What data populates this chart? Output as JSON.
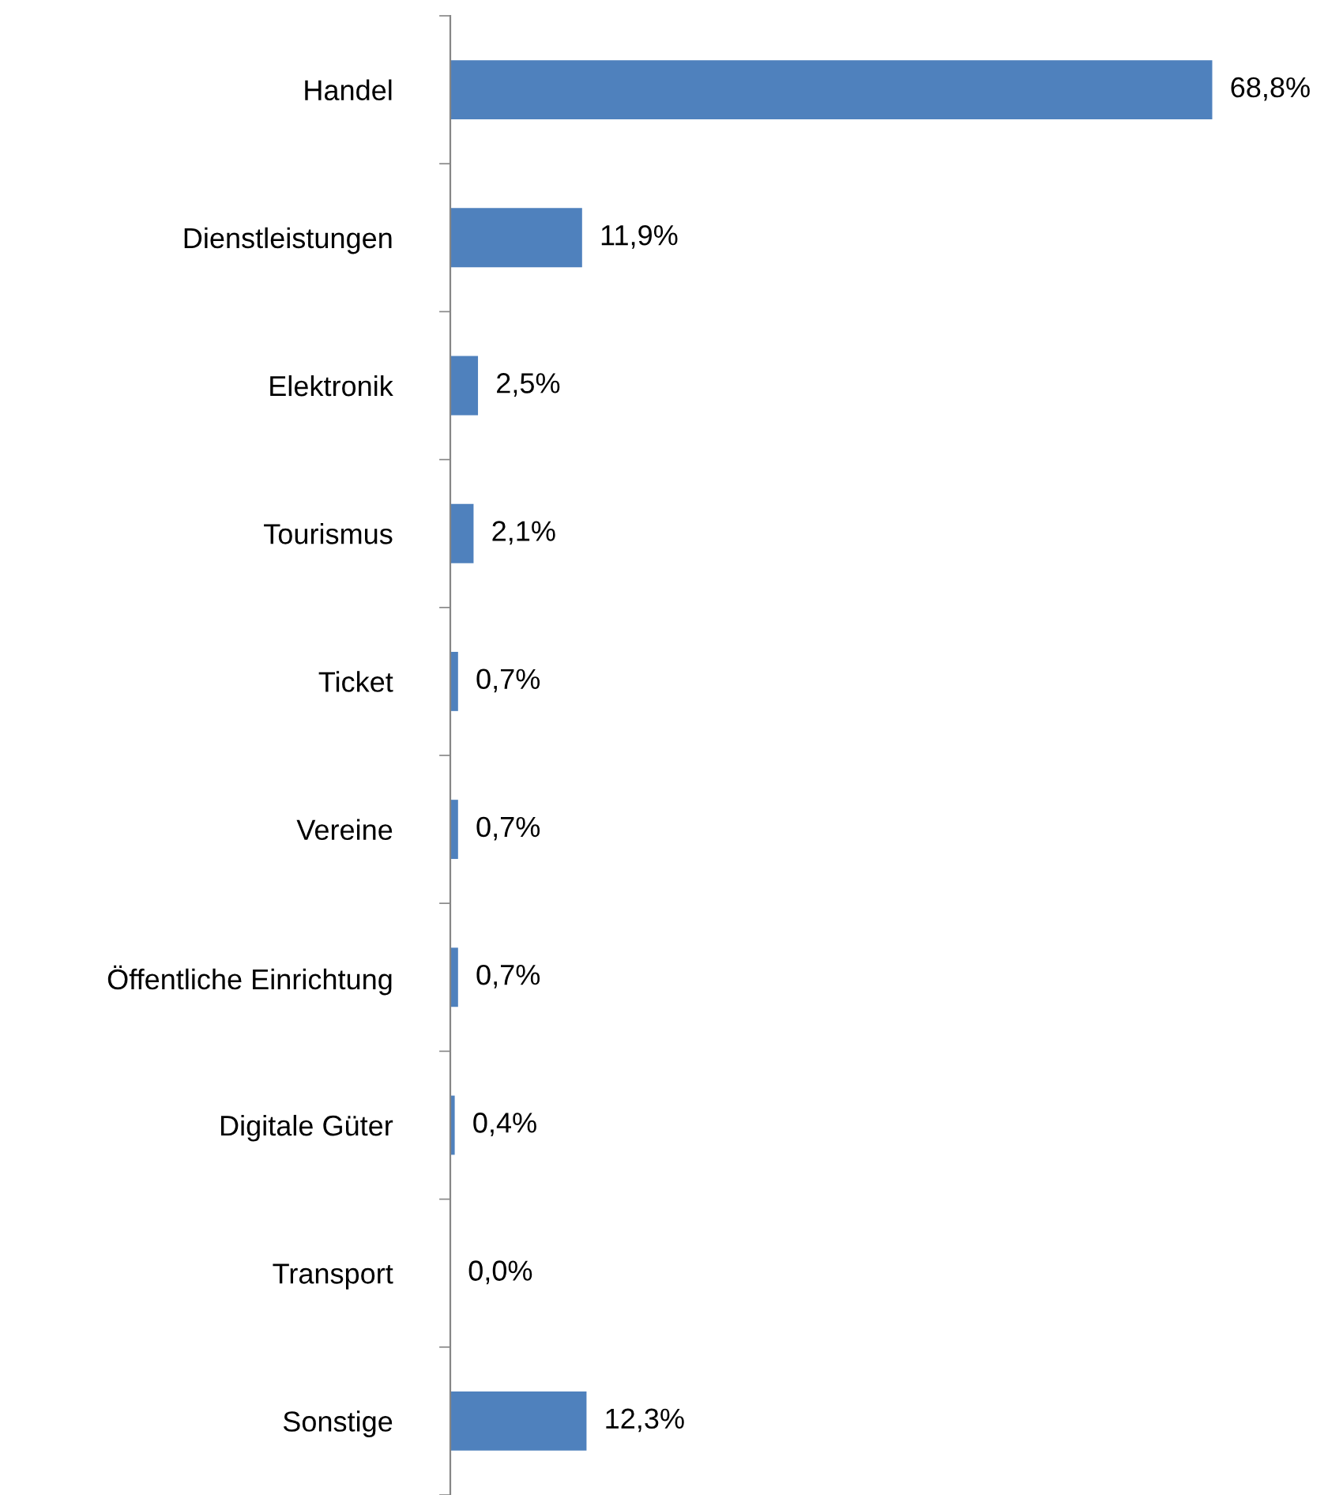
{
  "chart_data": {
    "type": "bar",
    "orientation": "horizontal",
    "categories": [
      "Handel",
      "Dienstleistungen",
      "Elektronik",
      "Tourismus",
      "Ticket",
      "Vereine",
      "Öffentliche Einrichtung",
      "Digitale Güter",
      "Transport",
      "Sonstige"
    ],
    "values": [
      68.8,
      11.9,
      2.5,
      2.1,
      0.7,
      0.7,
      0.7,
      0.4,
      0.0,
      12.3
    ],
    "value_labels": [
      "68,8%",
      "11,9%",
      "2,5%",
      "2,1%",
      "0,7%",
      "0,7%",
      "0,7%",
      "0,4%",
      "0,0%",
      "12,3%"
    ],
    "color": "#4f81bd",
    "grid": false,
    "legend": false
  }
}
